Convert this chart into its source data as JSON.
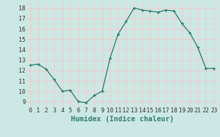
{
  "x": [
    0,
    1,
    2,
    3,
    4,
    5,
    6,
    7,
    8,
    9,
    10,
    11,
    12,
    13,
    14,
    15,
    16,
    17,
    18,
    19,
    20,
    21,
    22,
    23
  ],
  "y": [
    12.5,
    12.6,
    12.1,
    11.1,
    10.0,
    10.1,
    9.0,
    8.9,
    9.6,
    10.0,
    13.2,
    15.5,
    16.7,
    18.0,
    17.8,
    17.7,
    17.6,
    17.8,
    17.7,
    16.5,
    15.6,
    14.2,
    12.2,
    12.2
  ],
  "title": "",
  "xlabel": "Humidex (Indice chaleur)",
  "xlim": [
    -0.5,
    23.5
  ],
  "ylim": [
    8.5,
    18.5
  ],
  "yticks": [
    9,
    10,
    11,
    12,
    13,
    14,
    15,
    16,
    17,
    18
  ],
  "xticks": [
    0,
    1,
    2,
    3,
    4,
    5,
    6,
    7,
    8,
    9,
    10,
    11,
    12,
    13,
    14,
    15,
    16,
    17,
    18,
    19,
    20,
    21,
    22,
    23
  ],
  "line_color": "#2e7d6e",
  "marker": "+",
  "bg_color": "#cce8e4",
  "grid_color": "#f0c8c8",
  "tick_label_fontsize": 6,
  "xlabel_fontsize": 7.5
}
